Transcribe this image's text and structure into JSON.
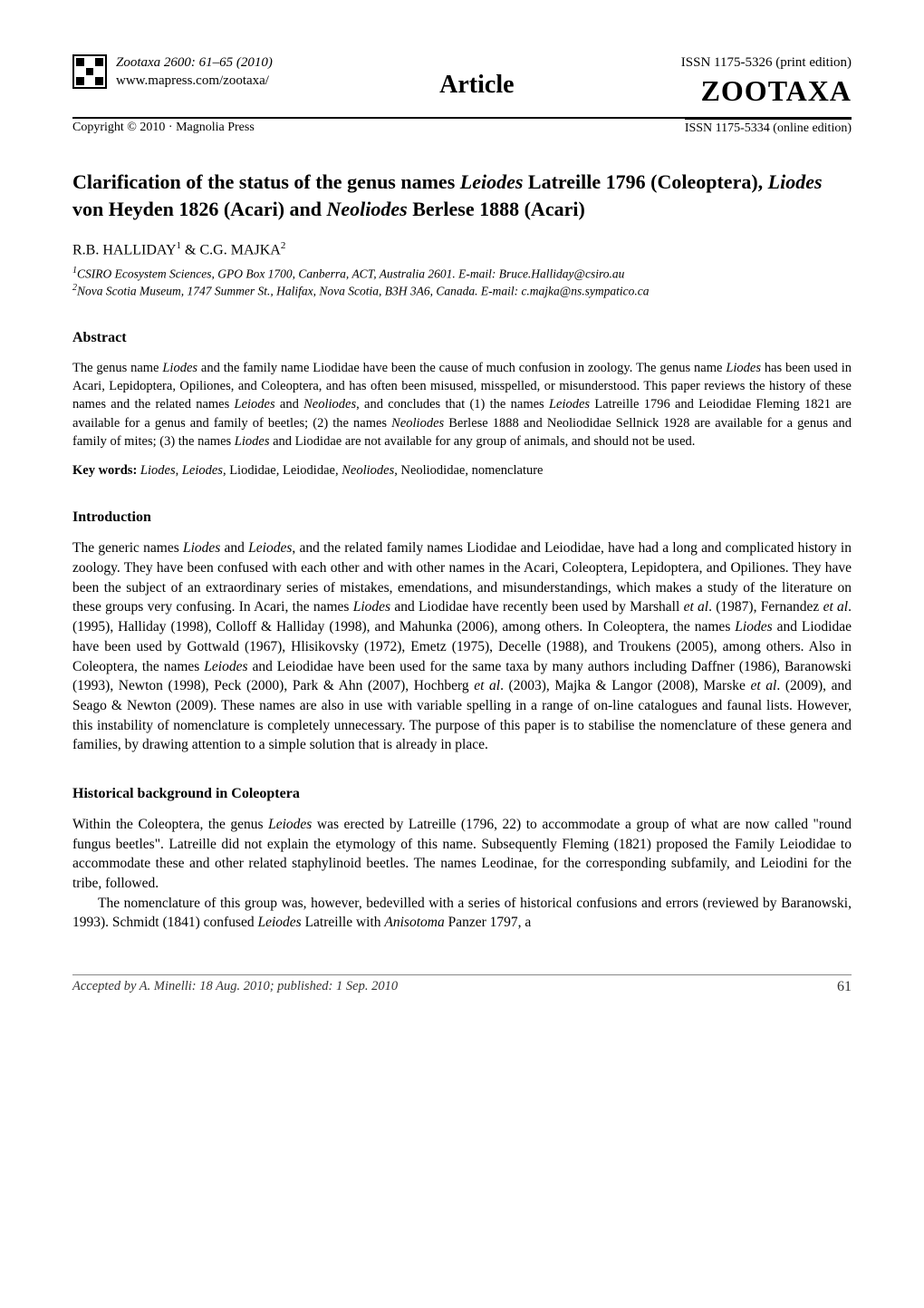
{
  "header": {
    "left": {
      "journal_line": "Zootaxa 2600: 61–65  (2010)",
      "url": "www.mapress.com/zootaxa/"
    },
    "center": "Article",
    "right": {
      "issn_print": "ISSN 1175-5326  (print edition)",
      "logo": "ZOOTAXA",
      "issn_online": "ISSN 1175-5334 (online edition)"
    },
    "copyright": "Copyright © 2010  ·  Magnolia Press"
  },
  "title": {
    "pre1": "Clarification of the status of the genus names ",
    "ital1": "Leiodes",
    "mid1": " Latreille 1796 (Coleoptera), ",
    "ital2": "Liodes",
    "mid2": " von Heyden 1826 (Acari) and ",
    "ital3": "Neoliodes",
    "post": " Berlese 1888 (Acari)"
  },
  "authors": {
    "a1": "R.B. HALLIDAY",
    "a1sup": "1",
    "amp": " & ",
    "a2": "C.G. MAJKA",
    "a2sup": "2"
  },
  "affiliations": {
    "aff1sup": "1",
    "aff1": "CSIRO Ecosystem Sciences, GPO Box 1700, Canberra, ACT, Australia 2601. E-mail: Bruce.Halliday@csiro.au",
    "aff2sup": "2",
    "aff2": "Nova Scotia Museum, 1747 Summer St., Halifax, Nova Scotia, B3H 3A6, Canada. E-mail: c.majka@ns.sympatico.ca"
  },
  "abstract": {
    "heading": "Abstract",
    "p_s1": "The genus name ",
    "p_i1": "Liodes",
    "p_s2": " and the family name Liodidae have been the cause of much confusion in zoology. The genus name ",
    "p_i2": "Liodes",
    "p_s3": " has been used in Acari, Lepidoptera, Opiliones, and Coleoptera, and has often been misused, misspelled, or misunderstood. This paper reviews the history of these names and the related names ",
    "p_i3": "Leiodes",
    "p_s4": " and ",
    "p_i4": "Neoliodes",
    "p_s5": ", and concludes that (1) the names ",
    "p_i5": "Leiodes",
    "p_s6": " Latreille 1796 and Leiodidae Fleming 1821 are available for a genus and family of beetles; (2) the names ",
    "p_i6": "Neoliodes",
    "p_s7": " Berlese 1888 and Neoliodidae Sellnick 1928 are available for a genus and family of mites; (3) the names ",
    "p_i7": "Liodes",
    "p_s8": " and Liodidae are not available for any group of animals, and should not be used."
  },
  "keywords": {
    "label": "Key words:",
    "k1": " Liodes",
    "sep1": ", ",
    "k2": "Leiodes",
    "sep2": ", Liodidae, Leiodidae, ",
    "k3": "Neoliodes",
    "sep3": ", Neoliodidae, nomenclature"
  },
  "intro": {
    "heading": "Introduction",
    "p1_s1": "The generic names ",
    "p1_i1": "Liodes",
    "p1_s2": " and ",
    "p1_i2": "Leiodes",
    "p1_s3": ", and the related family names Liodidae and Leiodidae, have had a long and complicated history in zoology. They have been confused with each other and with other names in the Acari, Coleoptera, Lepidoptera, and Opiliones. They have been the subject of an extraordinary series of mistakes, emendations, and misunderstandings, which makes a study of the literature on these groups very confusing. In Acari, the names ",
    "p1_i3": "Liodes",
    "p1_s4": " and Liodidae have recently been used by Marshall ",
    "p1_i4": "et al",
    "p1_s5": ". (1987), Fernandez ",
    "p1_i5": "et al",
    "p1_s6": ". (1995), Halliday (1998), Colloff & Halliday (1998), and Mahunka (2006), among others. In Coleoptera, the names ",
    "p1_i6": "Liodes",
    "p1_s7": " and Liodidae have been used by Gottwald (1967), Hlisikovsky (1972), Emetz (1975), Decelle (1988), and Troukens (2005), among others. Also in Coleoptera, the names ",
    "p1_i7": "Leiodes",
    "p1_s8": " and Leiodidae have been used for the same taxa by many authors including Daffner (1986), Baranowski (1993), Newton (1998), Peck (2000), Park & Ahn (2007), Hochberg ",
    "p1_i8": "et al",
    "p1_s9": ". (2003), Majka & Langor (2008), Marske ",
    "p1_i9": "et al",
    "p1_s10": ". (2009), and Seago & Newton (2009). These names are also in use with variable spelling in a range of on-line catalogues and faunal lists. However, this instability of nomenclature is completely unnecessary. The purpose of this paper is to stabilise the nomenclature of these genera and families, by drawing attention to a simple solution that is already in place."
  },
  "background": {
    "heading": "Historical background in Coleoptera",
    "p1_s1": "Within the Coleoptera, the genus ",
    "p1_i1": "Leiodes",
    "p1_s2": " was erected by Latreille (1796, 22) to accommodate a group of what are now called \"round fungus beetles\". Latreille did not explain the etymology of this name. Subsequently Fleming (1821) proposed the Family Leiodidae to accommodate these and other related staphylinoid beetles. The names Leodinae, for the corresponding subfamily, and Leiodini for the tribe, followed.",
    "p2_s1": "The nomenclature of this group was, however, bedevilled with a series of historical confusions and errors (reviewed by Baranowski, 1993). Schmidt (1841) confused ",
    "p2_i1": "Leiodes",
    "p2_s2": " Latreille with ",
    "p2_i2": "Anisotoma",
    "p2_s3": " Panzer 1797, a"
  },
  "footer": {
    "accepted": "Accepted by A. Minelli: 18 Aug. 2010; published: 1 Sep. 2010",
    "page": "61"
  },
  "colors": {
    "text": "#000000",
    "background": "#ffffff",
    "rule": "#888888"
  }
}
